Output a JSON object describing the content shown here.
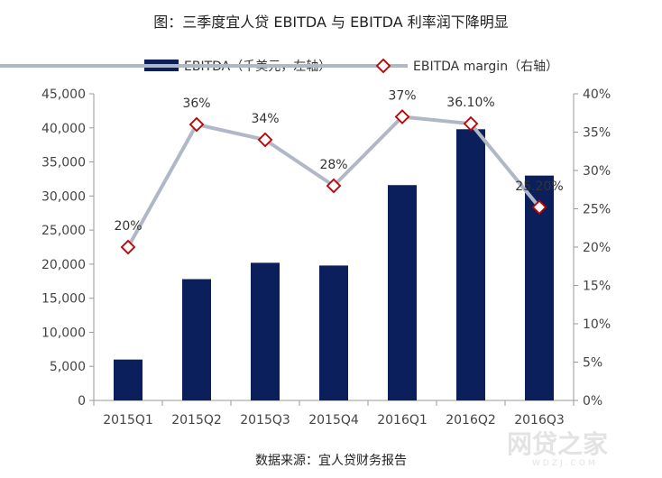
{
  "chart_data": {
    "type": "bar",
    "title": "图：三季度宜人贷 EBITDA 与 EBITDA 利率润下降明显",
    "categories": [
      "2015Q1",
      "2015Q2",
      "2015Q3",
      "2015Q4",
      "2016Q1",
      "2016Q2",
      "2016Q3"
    ],
    "series": [
      {
        "name": "EBITDA（千美元，左轴）",
        "type": "bar",
        "axis": "left",
        "color": "#0b1f5c",
        "values": [
          6000,
          17800,
          20200,
          19800,
          31600,
          39800,
          33000
        ]
      },
      {
        "name": "EBITDA margin（右轴）",
        "type": "line",
        "axis": "right",
        "color": "#b0b8c8",
        "marker_color": "#c00000",
        "values": [
          20,
          36,
          34,
          28,
          37,
          36.1,
          25.2
        ],
        "labels": [
          "20%",
          "36%",
          "34%",
          "28%",
          "37%",
          "36.10%",
          "25.20%"
        ]
      }
    ],
    "y_left": {
      "ylim": [
        0,
        45000
      ],
      "ticks": [
        "0",
        "5,000",
        "10,000",
        "15,000",
        "20,000",
        "25,000",
        "30,000",
        "35,000",
        "40,000",
        "45,000"
      ]
    },
    "y_right": {
      "ylim": [
        0,
        40
      ],
      "ticks": [
        "0%",
        "5%",
        "10%",
        "15%",
        "20%",
        "25%",
        "30%",
        "35%",
        "40%"
      ]
    },
    "legend_placement": "top-center",
    "grid": false,
    "source": "数据来源：宜人贷财务报告",
    "watermark": "网贷之家",
    "watermark_sub": "WDZJ.COM"
  }
}
